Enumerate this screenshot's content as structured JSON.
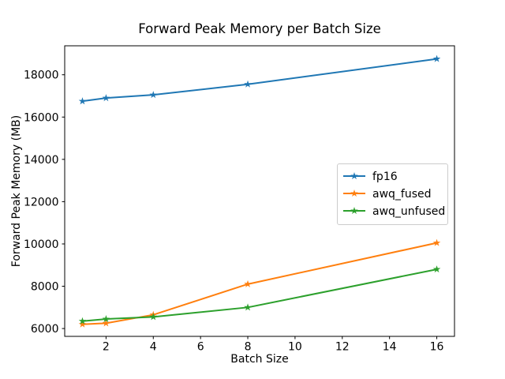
{
  "figure": {
    "background": "#ffffff",
    "spine_color": "#000000",
    "text_color": "#000000"
  },
  "chart_data": {
    "type": "line",
    "title": "Forward Peak Memory per Batch Size",
    "xlabel": "Batch Size",
    "ylabel": "Forward Peak Memory (MB)",
    "x": [
      1,
      2,
      4,
      8,
      16
    ],
    "series": [
      {
        "name": "fp16",
        "color": "#1f77b4",
        "values": [
          16750,
          16900,
          17050,
          17550,
          18750
        ]
      },
      {
        "name": "awq_fused",
        "color": "#ff7f0e",
        "values": [
          6200,
          6250,
          6650,
          8100,
          10050
        ]
      },
      {
        "name": "awq_unfused",
        "color": "#2ca02c",
        "values": [
          6350,
          6450,
          6550,
          7000,
          8800
        ]
      }
    ],
    "marker": "star",
    "line_width": 2,
    "xlim": [
      0.25,
      16.75
    ],
    "ylim": [
      5630,
      19370
    ],
    "xticks": [
      2,
      4,
      6,
      8,
      10,
      12,
      14,
      16
    ],
    "yticks": [
      6000,
      8000,
      10000,
      12000,
      14000,
      16000,
      18000
    ],
    "grid": false,
    "legend": {
      "position": "center-right",
      "entries": [
        "fp16",
        "awq_fused",
        "awq_unfused"
      ]
    }
  }
}
